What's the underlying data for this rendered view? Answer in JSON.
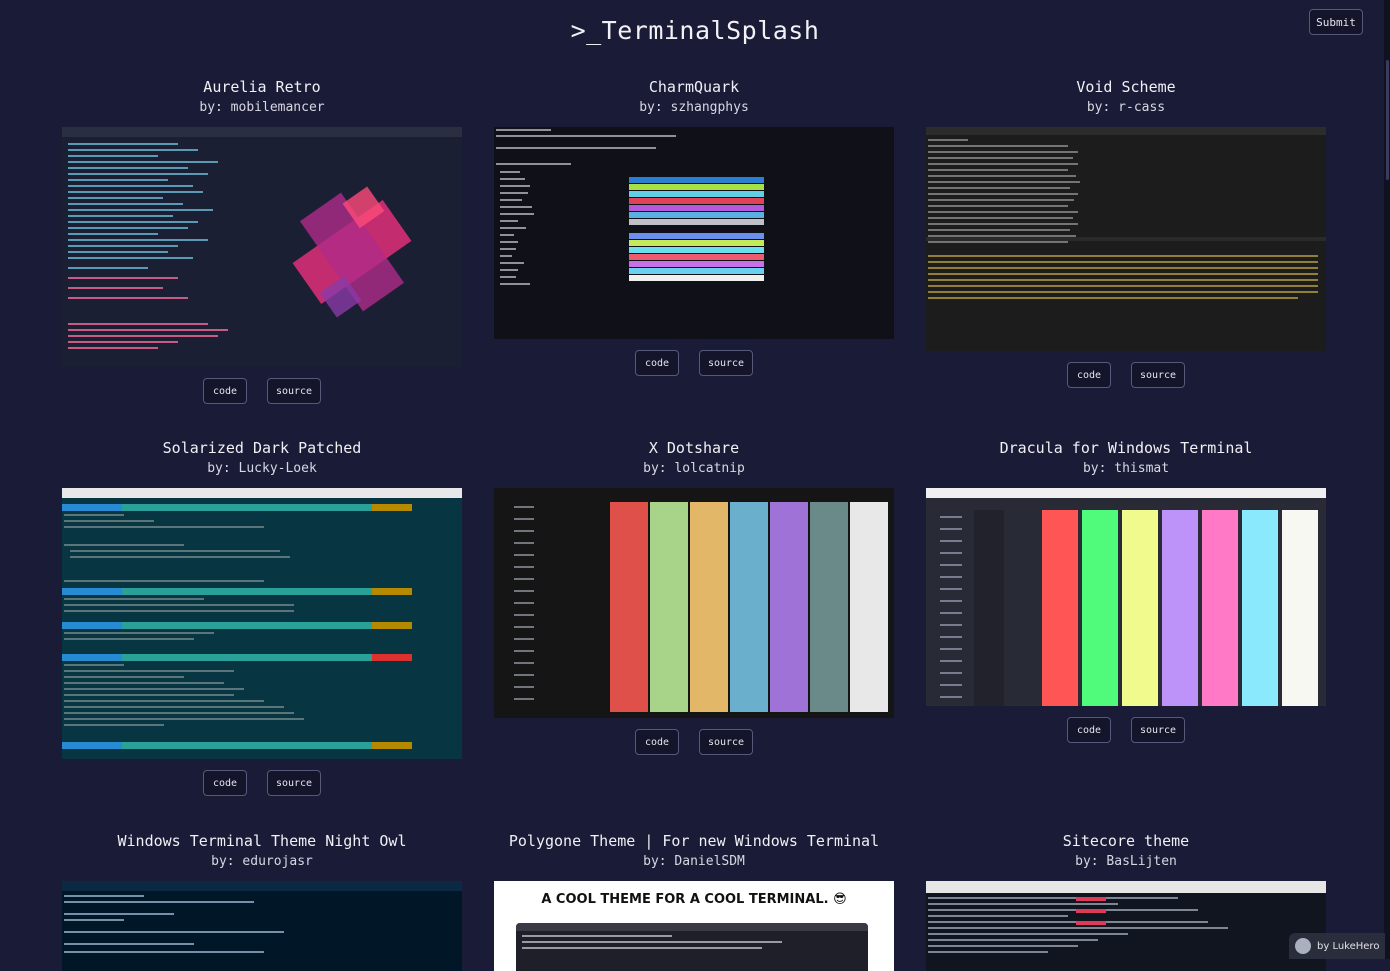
{
  "site": {
    "title": ">_TerminalSplash",
    "submit_label": "Submit"
  },
  "buttons": {
    "code": "code",
    "source": "source"
  },
  "cards": [
    {
      "title": "Aurelia Retro",
      "author": "by: mobilemancer"
    },
    {
      "title": "CharmQuark",
      "author": "by: szhangphys"
    },
    {
      "title": "Void Scheme",
      "author": "by: r-cass"
    },
    {
      "title": "Solarized Dark Patched",
      "author": "by: Lucky-Loek"
    },
    {
      "title": "X Dotshare",
      "author": "by: lolcatnip"
    },
    {
      "title": "Dracula for Windows Terminal",
      "author": "by: thismat"
    },
    {
      "title": "Windows Terminal Theme Night Owl",
      "author": "by: edurojasr"
    },
    {
      "title": "Polygone Theme | For new Windows Terminal",
      "author": "by: DanielSDM",
      "thumb_caption": "A COOL THEME FOR A COOL TERMINAL. 😎"
    },
    {
      "title": "Sitecore theme",
      "author": "by: BasLijten"
    }
  ],
  "badge": {
    "label": "by LukeHero"
  },
  "colors": {
    "background": "#1a1b36",
    "aurelia_bg": "#1b1f33",
    "charmquark_bg": "#101018",
    "void_bg": "#1c1c1c",
    "solarized_bg": "#073642",
    "dotshare_bg": "#151515",
    "dracula_bg": "#282a36",
    "nightowl_bg": "#011627",
    "sitecore_bg": "#101520"
  }
}
